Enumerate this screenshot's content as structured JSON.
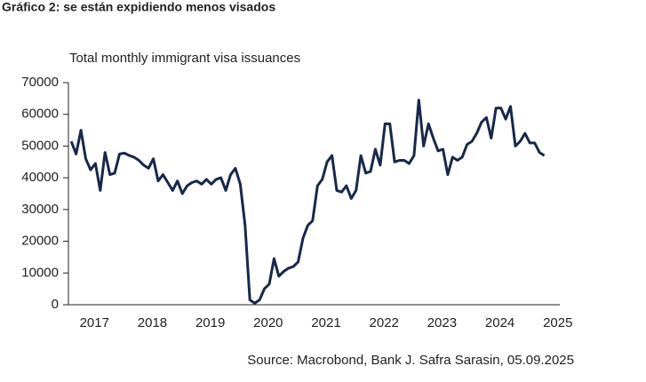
{
  "chart_data": {
    "type": "line",
    "title": "Gráfico 2: se están expidiendo menos visados",
    "subtitle": "Total monthly immigrant visa issuances",
    "source": "Source: Macrobond, Bank J. Safra Sarasin, 05.09.2025",
    "x": [
      2017.0,
      2017.083,
      2017.167,
      2017.25,
      2017.333,
      2017.417,
      2017.5,
      2017.583,
      2017.667,
      2017.75,
      2017.833,
      2017.917,
      2018.0,
      2018.083,
      2018.167,
      2018.25,
      2018.333,
      2018.417,
      2018.5,
      2018.583,
      2018.667,
      2018.75,
      2018.833,
      2018.917,
      2019.0,
      2019.083,
      2019.167,
      2019.25,
      2019.333,
      2019.417,
      2019.5,
      2019.583,
      2019.667,
      2019.75,
      2019.833,
      2019.917,
      2020.0,
      2020.083,
      2020.167,
      2020.25,
      2020.333,
      2020.417,
      2020.5,
      2020.583,
      2020.667,
      2020.75,
      2020.833,
      2020.917,
      2021.0,
      2021.083,
      2021.167,
      2021.25,
      2021.333,
      2021.417,
      2021.5,
      2021.583,
      2021.667,
      2021.75,
      2021.833,
      2021.917,
      2022.0,
      2022.083,
      2022.167,
      2022.25,
      2022.333,
      2022.417,
      2022.5,
      2022.583,
      2022.667,
      2022.75,
      2022.833,
      2022.917,
      2023.0,
      2023.083,
      2023.167,
      2023.25,
      2023.333,
      2023.417,
      2023.5,
      2023.583,
      2023.667,
      2023.75,
      2023.833,
      2023.917,
      2024.0,
      2024.083,
      2024.167,
      2024.25,
      2024.333,
      2024.417,
      2024.5,
      2024.583,
      2024.667,
      2024.75,
      2024.833,
      2024.917,
      2025.0,
      2025.083,
      2025.167
    ],
    "series": [
      {
        "name": "Total monthly immigrant visa issuances",
        "color": "#17284b",
        "values": [
          51500,
          47500,
          55000,
          46000,
          42500,
          44500,
          36000,
          48000,
          41000,
          41500,
          47500,
          47800,
          47000,
          46500,
          45500,
          44000,
          43000,
          46000,
          39000,
          41000,
          38500,
          36000,
          39000,
          35000,
          37500,
          38500,
          39000,
          38000,
          39500,
          38000,
          39500,
          40000,
          36000,
          41000,
          43000,
          38000,
          25000,
          1500,
          500,
          1500,
          5000,
          6500,
          14500,
          9000,
          10500,
          11500,
          12000,
          13500,
          21000,
          25000,
          26500,
          37500,
          39500,
          45000,
          47000,
          36000,
          35500,
          37500,
          33500,
          36000,
          47000,
          41500,
          42000,
          49000,
          44000,
          57000,
          57000,
          45000,
          45500,
          45500,
          44500,
          47000,
          64500,
          50000,
          57000,
          52500,
          48500,
          49000,
          41000,
          46500,
          45500,
          46500,
          50500,
          51500,
          54000,
          57500,
          59000,
          52500,
          62000,
          62000,
          58500,
          62500,
          50000,
          51500,
          54000,
          51000,
          51000,
          48000,
          47000
        ]
      }
    ],
    "xlim": [
      2016.92,
      2025.25
    ],
    "xticks": [
      {
        "value": 2017.4,
        "label": "2017"
      },
      {
        "value": 2018.4,
        "label": "2018"
      },
      {
        "value": 2019.4,
        "label": "2019"
      },
      {
        "value": 2020.4,
        "label": "2020"
      },
      {
        "value": 2021.4,
        "label": "2021"
      },
      {
        "value": 2022.4,
        "label": "2022"
      },
      {
        "value": 2023.4,
        "label": "2023"
      },
      {
        "value": 2024.4,
        "label": "2024"
      },
      {
        "value": 2025.4,
        "label": "2025"
      }
    ],
    "ylim": [
      0,
      70000
    ],
    "yticks": [
      0,
      10000,
      20000,
      30000,
      40000,
      50000,
      60000,
      70000
    ],
    "grid": false
  }
}
